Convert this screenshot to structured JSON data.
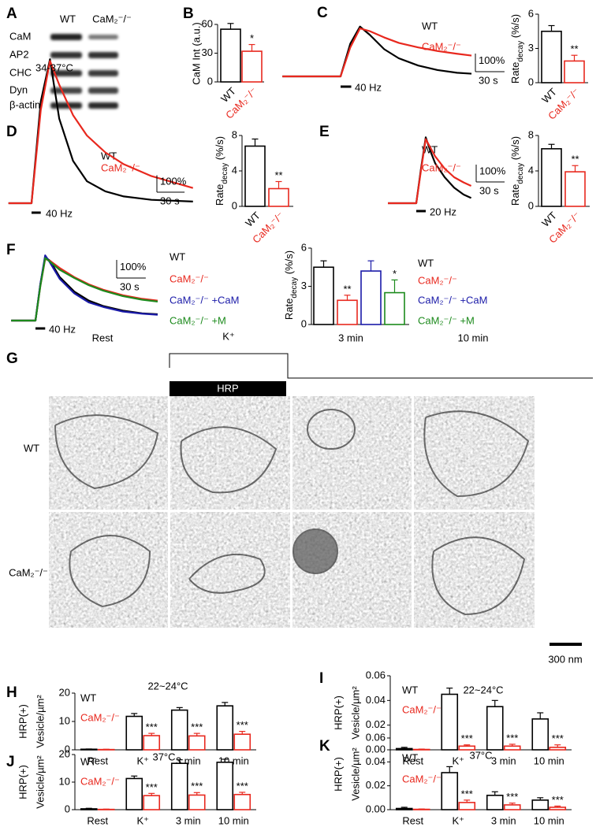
{
  "blot": {
    "label": "A",
    "columns": [
      "WT",
      "CaM₂⁻/⁻"
    ],
    "rows": [
      "CaM",
      "AP2",
      "CHC",
      "Dyn",
      "β-actin"
    ]
  },
  "em": {
    "label": "G",
    "headings": [
      "Rest",
      "K⁺",
      "3 min",
      "10 min"
    ],
    "treatment": "HRP",
    "rows": [
      "WT",
      "CaM₂⁻/⁻"
    ],
    "scalebar": "300 nm"
  },
  "chart_data": [
    {
      "type": "bar",
      "label": "B",
      "ylabel": "CaM Int (a.u.)",
      "categories": [
        "WT",
        "CaM₂⁻/⁻"
      ],
      "values": [
        55,
        32
      ],
      "errors": [
        6,
        7
      ],
      "colors": [
        "#000000",
        "#e8281e"
      ],
      "stars": [
        null,
        "*"
      ],
      "ylim": [
        0,
        60
      ],
      "yticks": [
        0,
        30,
        60
      ]
    },
    {
      "type": "line",
      "label": "C",
      "x": [
        -60,
        -30,
        0,
        10,
        20,
        30,
        45,
        60,
        80,
        100,
        120,
        135
      ],
      "series": [
        {
          "name": "WT",
          "color": "#000000",
          "values": [
            0,
            0,
            0,
            180,
            275,
            230,
            150,
            100,
            60,
            35,
            20,
            15
          ]
        },
        {
          "name": "CaM₂⁻/⁻",
          "color": "#e8281e",
          "values": [
            0,
            0,
            0,
            160,
            265,
            250,
            215,
            185,
            160,
            140,
            125,
            115
          ]
        }
      ],
      "scalebar": {
        "y": {
          "value": 100,
          "label": "100%"
        },
        "x": {
          "value": 30,
          "label": "30 s"
        }
      },
      "stimulus": {
        "label": "40 Hz",
        "start": 0,
        "end": 11
      }
    },
    {
      "type": "bar",
      "ylabel": [
        "Rate",
        "decay",
        " (%/s)"
      ],
      "categories": [
        "WT",
        "CaM₂⁻/⁻"
      ],
      "values": [
        4.5,
        1.9
      ],
      "errors": [
        0.5,
        0.5
      ],
      "colors": [
        "#000000",
        "#e8281e"
      ],
      "stars": [
        null,
        "**"
      ],
      "ylim": [
        0,
        6
      ],
      "yticks": [
        0,
        3,
        6
      ]
    },
    {
      "type": "line",
      "label": "D",
      "annotation": "34-37°C",
      "x": [
        -25,
        -10,
        0,
        10,
        20,
        30,
        45,
        60,
        80,
        100,
        130,
        175
      ],
      "series": [
        {
          "name": "WT",
          "color": "#000000",
          "values": [
            0,
            0,
            0,
            600,
            850,
            500,
            250,
            130,
            70,
            40,
            20,
            10
          ]
        },
        {
          "name": "CaM₂⁻/⁻",
          "color": "#e8281e",
          "values": [
            0,
            0,
            0,
            550,
            840,
            700,
            520,
            400,
            300,
            230,
            160,
            90
          ]
        }
      ],
      "scalebar": {
        "y": {
          "value": 100,
          "label": "100%"
        },
        "x": {
          "value": 30,
          "label": "30 s"
        }
      },
      "stimulus": {
        "label": "40 Hz",
        "start": 0,
        "end": 10
      }
    },
    {
      "type": "bar",
      "ylabel": [
        "Rate",
        "decay",
        " (%/s)"
      ],
      "categories": [
        "WT",
        "CaM₂⁻/⁻"
      ],
      "values": [
        6.8,
        2.0
      ],
      "errors": [
        0.8,
        0.8
      ],
      "colors": [
        "#000000",
        "#e8281e"
      ],
      "stars": [
        null,
        "**"
      ],
      "ylim": [
        0,
        8
      ],
      "yticks": [
        0,
        4,
        8
      ]
    },
    {
      "type": "line",
      "label": "E",
      "x": [
        -30,
        -15,
        0,
        5,
        10,
        15,
        20,
        30,
        40,
        50,
        58
      ],
      "series": [
        {
          "name": "WT",
          "color": "#000000",
          "values": [
            0,
            0,
            0,
            200,
            380,
            300,
            230,
            150,
            90,
            50,
            30
          ]
        },
        {
          "name": "CaM₂⁻/⁻",
          "color": "#e8281e",
          "values": [
            0,
            0,
            0,
            190,
            370,
            320,
            270,
            200,
            150,
            120,
            100
          ]
        }
      ],
      "scalebar": {
        "y": {
          "value": 100,
          "label": "100%"
        },
        "x": {
          "value": 30,
          "label": "30 s"
        }
      },
      "stimulus": {
        "label": "20 Hz",
        "start": 0,
        "end": 10
      }
    },
    {
      "type": "bar",
      "ylabel": [
        "Rate",
        "decay",
        " (%/s)"
      ],
      "categories": [
        "WT",
        "CaM₂⁻/⁻"
      ],
      "values": [
        6.5,
        3.9
      ],
      "errors": [
        0.5,
        0.7
      ],
      "colors": [
        "#000000",
        "#e8281e"
      ],
      "stars": [
        null,
        "**"
      ],
      "ylim": [
        0,
        8
      ],
      "yticks": [
        0,
        4,
        8
      ]
    },
    {
      "type": "line",
      "label": "F",
      "x": [
        -25,
        -10,
        0,
        5,
        10,
        15,
        25,
        40,
        55,
        70,
        90,
        110,
        126
      ],
      "series": [
        {
          "name": "WT",
          "color": "#000000",
          "values": [
            0,
            0,
            0,
            200,
            350,
            330,
            240,
            160,
            110,
            80,
            55,
            40,
            35
          ]
        },
        {
          "name": "CaM₂⁻/⁻",
          "color": "#e8281e",
          "values": [
            0,
            0,
            0,
            190,
            340,
            330,
            290,
            240,
            200,
            170,
            140,
            120,
            110
          ]
        },
        {
          "name": "CaM₂⁻/⁻ +CaM",
          "color": "#1a1aa8",
          "values": [
            0,
            0,
            0,
            200,
            360,
            320,
            230,
            150,
            100,
            75,
            50,
            38,
            32
          ]
        },
        {
          "name": "CaM₂⁻/⁻ +M",
          "color": "#1c8a1c",
          "values": [
            0,
            0,
            0,
            190,
            345,
            325,
            280,
            235,
            195,
            165,
            135,
            115,
            105
          ]
        }
      ],
      "scalebar": {
        "y": {
          "value": 100,
          "label": "100%"
        },
        "x": {
          "value": 30,
          "label": "30 s"
        }
      },
      "stimulus": {
        "label": "40 Hz",
        "start": 0,
        "end": 10
      }
    },
    {
      "type": "bar",
      "ylabel": [
        "Rate",
        "decay",
        " (%/s)"
      ],
      "categories": [
        "WT",
        "CaM₂⁻/⁻",
        "CaM₂⁻/⁻ +CaM",
        "CaM₂⁻/⁻ +M"
      ],
      "values": [
        4.5,
        1.9,
        4.2,
        2.5
      ],
      "errors": [
        0.5,
        0.4,
        0.8,
        1.0
      ],
      "colors": [
        "#000000",
        "#e8281e",
        "#1a1aa8",
        "#1c8a1c"
      ],
      "stars": [
        null,
        "**",
        null,
        "*"
      ],
      "ylim": [
        0,
        6
      ],
      "yticks": [
        0,
        3,
        6
      ]
    },
    {
      "type": "grouped",
      "label": "H",
      "title": "22~24°C",
      "ylabel": [
        "HRP(+)",
        "Vesicle/µm²"
      ],
      "categories": [
        "Rest",
        "K⁺",
        "3 min",
        "10 min"
      ],
      "series": [
        {
          "name": "WT",
          "color": "#000000",
          "values": [
            0.2,
            11.8,
            14,
            15.5
          ],
          "errors": [
            0.1,
            1.0,
            0.9,
            1.2
          ],
          "stars": [
            null,
            null,
            null,
            null
          ]
        },
        {
          "name": "CaM₂⁻/⁻",
          "color": "#e8281e",
          "values": [
            0.1,
            5.0,
            4.9,
            5.5
          ],
          "errors": [
            0.1,
            0.8,
            0.9,
            1.0
          ],
          "stars": [
            null,
            "***",
            "***",
            "***"
          ]
        }
      ],
      "ylim": [
        0,
        20
      ],
      "yticks": [
        0,
        10,
        20
      ]
    },
    {
      "type": "grouped",
      "label": "I",
      "title": "22~24°C",
      "ylabel": [
        "HRP(+)",
        "Vesicle/µm²"
      ],
      "categories": [
        "Rest",
        "K⁺",
        "3 min",
        "10 min"
      ],
      "series": [
        {
          "name": "WT",
          "color": "#000000",
          "values": [
            0.001,
            0.045,
            0.035,
            0.025
          ],
          "errors": [
            0.001,
            0.005,
            0.005,
            0.005
          ],
          "stars": [
            null,
            null,
            null,
            null
          ]
        },
        {
          "name": "CaM₂⁻/⁻",
          "color": "#e8281e",
          "values": [
            0.0003,
            0.003,
            0.003,
            0.002
          ],
          "errors": [
            0.0003,
            0.001,
            0.0015,
            0.002
          ],
          "stars": [
            null,
            "***",
            "***",
            "***"
          ]
        }
      ],
      "ylim": [
        0,
        0.06
      ],
      "yticks": [
        {
          "value": 0,
          "label": "0.00"
        },
        0.02,
        0.04,
        0.06
      ]
    },
    {
      "type": "grouped",
      "label": "J",
      "title": "37°C",
      "ylabel": [
        "HRP(+)",
        "Vesicle/µm²"
      ],
      "categories": [
        "Rest",
        "K⁺",
        "3 min",
        "10 min"
      ],
      "series": [
        {
          "name": "WT",
          "color": "#000000",
          "values": [
            0.3,
            11.3,
            16.8,
            17.2
          ],
          "errors": [
            0.2,
            0.9,
            1.3,
            1.1
          ],
          "stars": [
            null,
            null,
            null,
            null
          ]
        },
        {
          "name": "CaM₂⁻/⁻",
          "color": "#e8281e",
          "values": [
            0.1,
            5.1,
            5.3,
            5.5
          ],
          "errors": [
            0.1,
            0.8,
            0.9,
            0.8
          ],
          "stars": [
            null,
            "***",
            "***",
            "***"
          ]
        }
      ],
      "ylim": [
        0,
        20
      ],
      "yticks": [
        0,
        10,
        20
      ]
    },
    {
      "type": "grouped",
      "label": "K",
      "title": "37°C",
      "ylabel": [
        "HRP(+)",
        "Vesicle/µm²"
      ],
      "categories": [
        "Rest",
        "K⁺",
        "3 min",
        "10 min"
      ],
      "series": [
        {
          "name": "WT",
          "color": "#000000",
          "values": [
            0.001,
            0.031,
            0.012,
            0.008
          ],
          "errors": [
            0.001,
            0.005,
            0.003,
            0.002
          ],
          "stars": [
            null,
            null,
            null,
            null
          ]
        },
        {
          "name": "CaM₂⁻/⁻",
          "color": "#e8281e",
          "values": [
            0.0003,
            0.006,
            0.004,
            0.002
          ],
          "errors": [
            0.0003,
            0.002,
            0.0015,
            0.001
          ],
          "stars": [
            null,
            "***",
            "***",
            "***"
          ]
        }
      ],
      "ylim": [
        0,
        0.06
      ],
      "yticks": [
        {
          "value": 0,
          "label": "0.00"
        },
        0.02,
        0.04,
        0.06
      ]
    }
  ]
}
